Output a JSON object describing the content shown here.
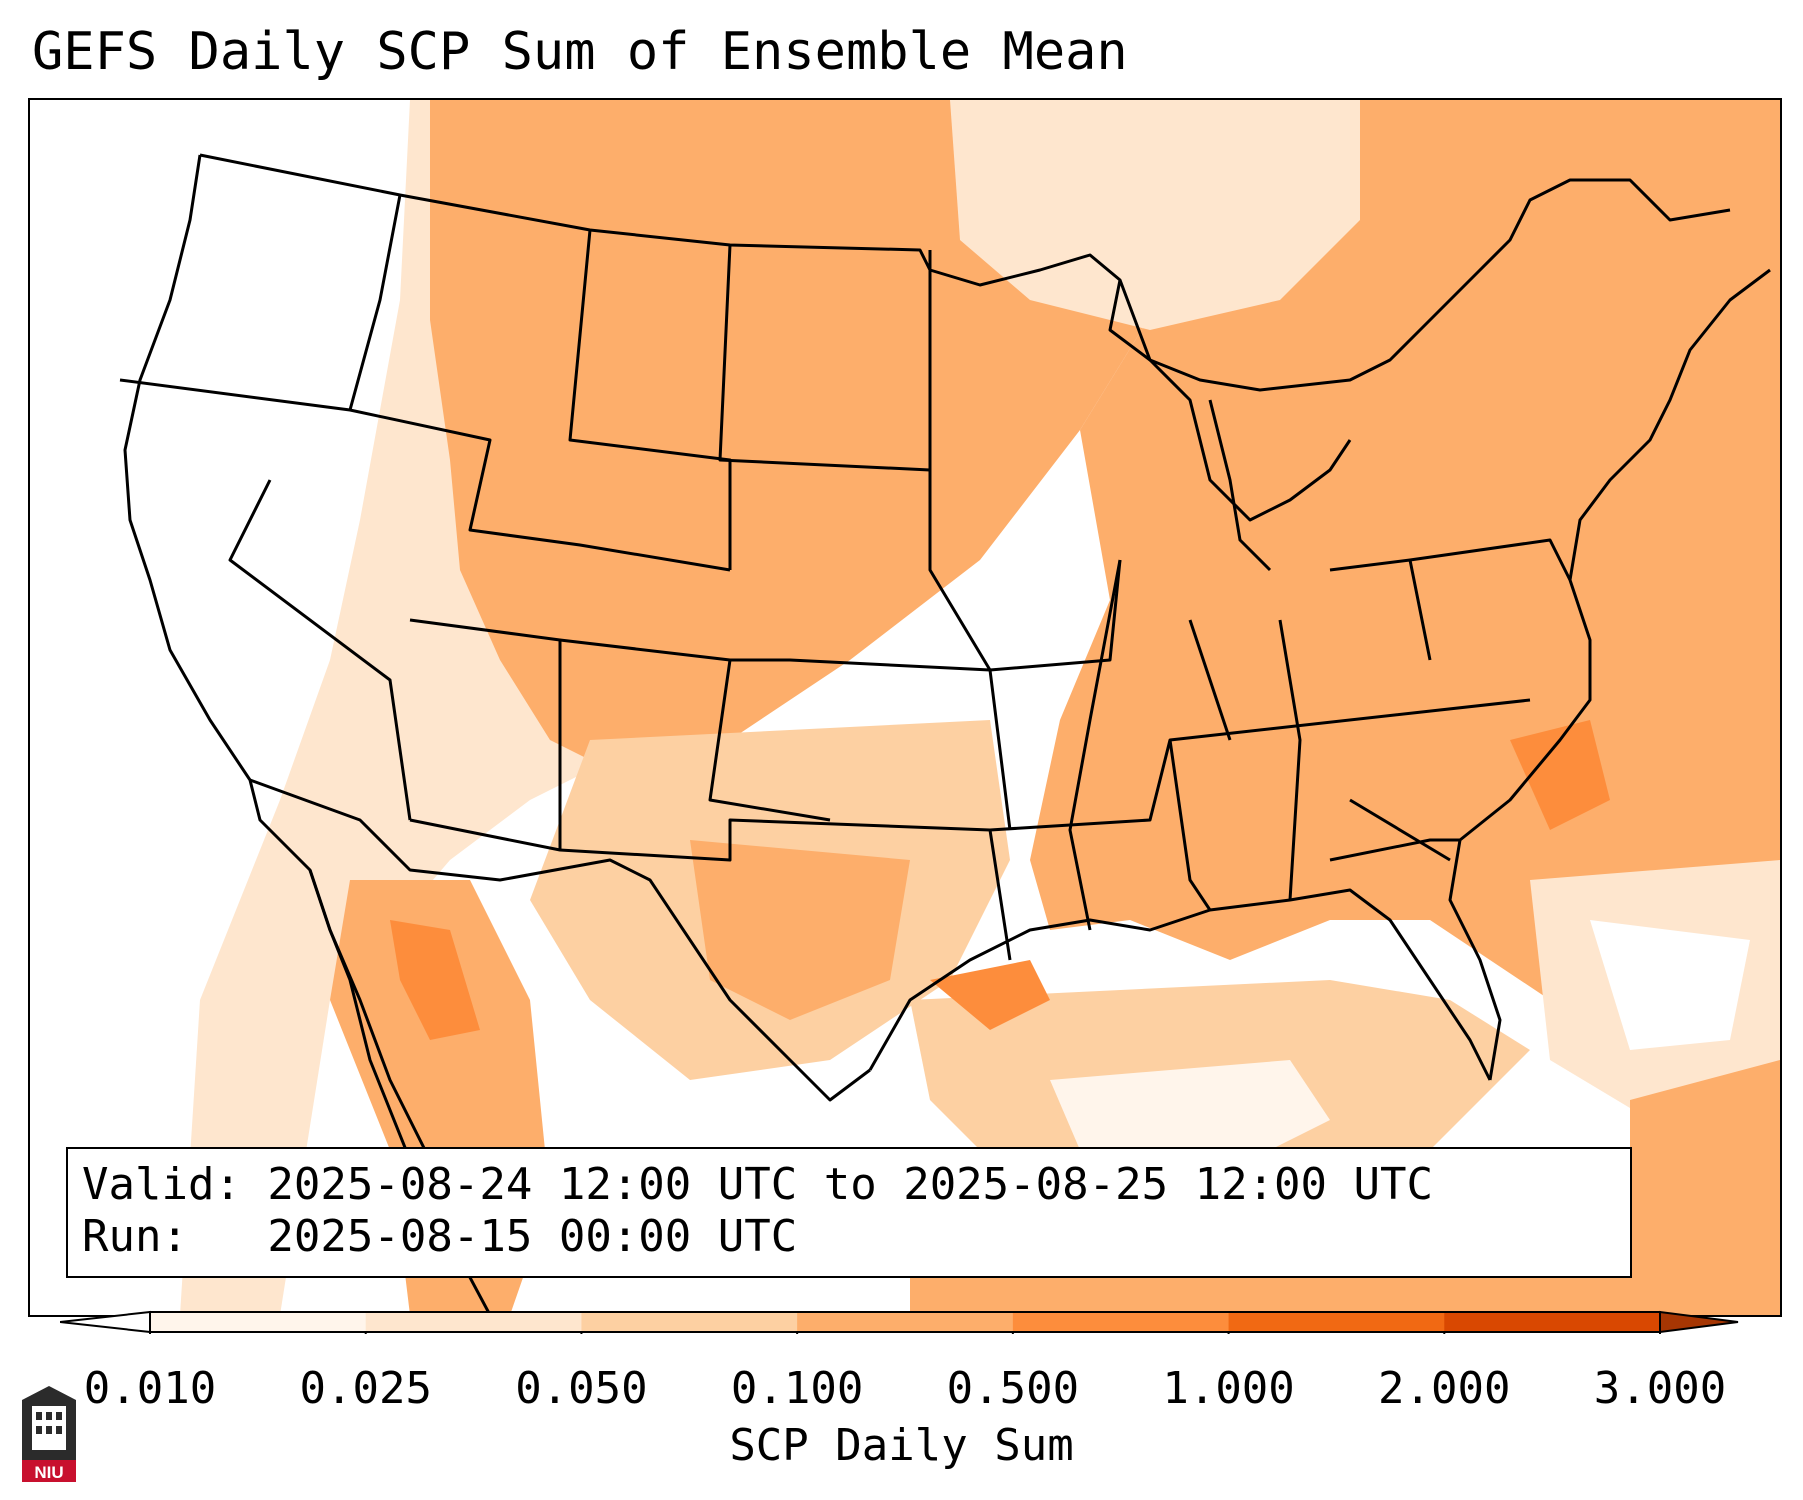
{
  "title": "GEFS Daily SCP Sum of Ensemble Mean",
  "info": {
    "valid": "Valid: 2025-08-24 12:00 UTC to 2025-08-25 12:00 UTC",
    "run": "Run:   2025-08-15 00:00 UTC"
  },
  "colorbar": {
    "label": "SCP Daily Sum",
    "ticks": [
      "0.010",
      "0.025",
      "0.050",
      "0.100",
      "0.500",
      "1.000",
      "2.000",
      "3.000"
    ],
    "colors": [
      "#fff5eb",
      "#fee6ce",
      "#fdd0a2",
      "#fdae6b",
      "#fd8d3c",
      "#f16913",
      "#d94801",
      "#a63603"
    ],
    "under_color": "#ffffff",
    "over_color": "#a63603"
  },
  "logo": {
    "text": "NIU",
    "color": "#c8102e",
    "icon": "university-tower-icon"
  },
  "map": {
    "icon": "conus-map",
    "boundary_color": "#000000"
  }
}
